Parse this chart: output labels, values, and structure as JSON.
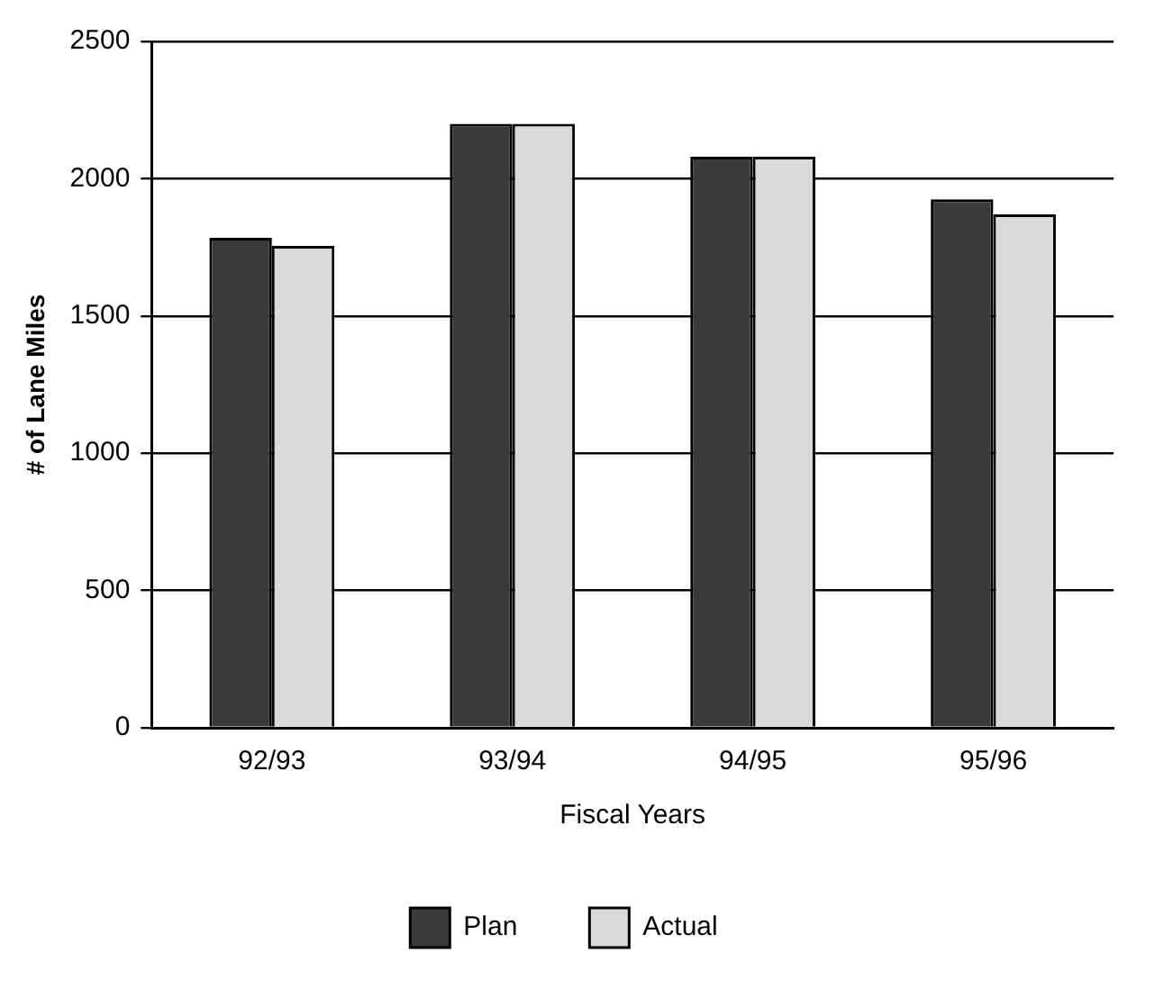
{
  "chart_data": {
    "type": "bar",
    "xlabel": "Fiscal Years",
    "ylabel": "# of Lane Miles",
    "categories": [
      "92/93",
      "93/94",
      "94/95",
      "95/96"
    ],
    "series": [
      {
        "name": "Plan",
        "color": "#3a3a3a",
        "values": [
          1785,
          2200,
          2080,
          1925
        ]
      },
      {
        "name": "Actual",
        "color": "#d9d9d9",
        "values": [
          1755,
          2200,
          2080,
          1870
        ]
      }
    ],
    "ylim": [
      0,
      2500
    ],
    "yticks": [
      0,
      500,
      1000,
      1500,
      2000,
      2500
    ],
    "grid": "y",
    "legend": "bottom"
  }
}
